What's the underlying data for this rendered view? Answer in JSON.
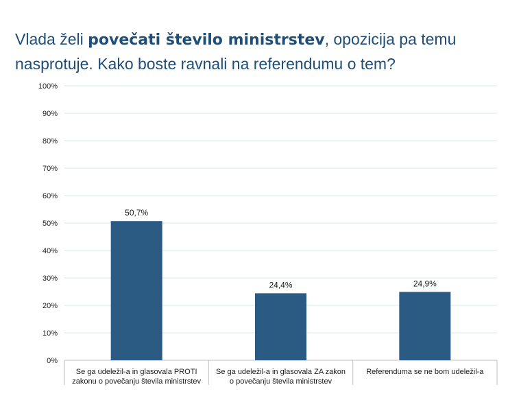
{
  "title": {
    "part1": "Vlada želi ",
    "bold": "povečati število ministrstev",
    "part2": ", opozicija pa temu nasprotuje. Kako boste ravnali na referendumu o tem?"
  },
  "colors": {
    "bar": "#2b5a83",
    "grid": "#dbe5ee",
    "axis": "#bfbfbf",
    "title": "#1f4e79"
  },
  "chart_data": {
    "type": "bar",
    "title": "Vlada želi povečati število ministrstev, opozicija pa temu nasprotuje. Kako boste ravnali na referendumu o tem?",
    "categories": [
      [
        "Se ga udeležil-a in glasovala PROTI",
        "zakonu o povečanju števila ministrstev"
      ],
      [
        "Se ga udeležil-a in glasovala ZA zakon",
        "o povečanju števila ministrstev"
      ],
      [
        "Referenduma se ne bom udeležil-a"
      ]
    ],
    "values": [
      50.7,
      24.4,
      24.9
    ],
    "data_labels": [
      "50,7%",
      "24,4%",
      "24,9%"
    ],
    "y_ticks": [
      "0%",
      "10%",
      "20%",
      "30%",
      "40%",
      "50%",
      "60%",
      "70%",
      "80%",
      "90%",
      "100%"
    ],
    "ylim": [
      0,
      100
    ],
    "grid": true,
    "xlabel": "",
    "ylabel": ""
  }
}
